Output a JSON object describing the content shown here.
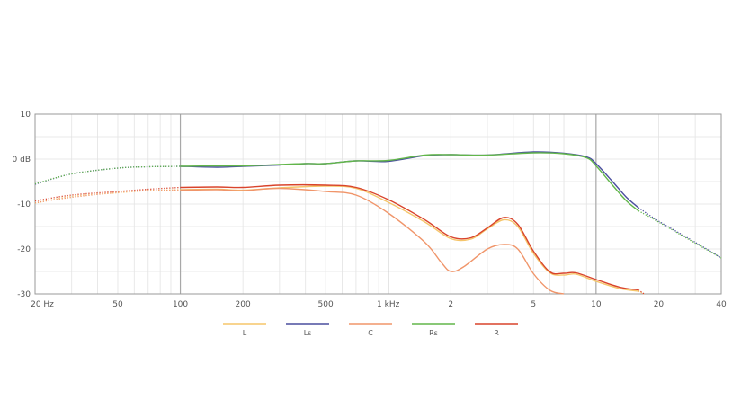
{
  "chart_data": {
    "type": "line",
    "title": "",
    "xlabel": "",
    "ylabel": "",
    "x_scale": "log",
    "xlim": [
      20,
      40000
    ],
    "ylim": [
      -30,
      10
    ],
    "grid": true,
    "legend_position": "bottom-center",
    "x_ticks": [
      {
        "value": 20,
        "label": "20 Hz"
      },
      {
        "value": 50,
        "label": "50"
      },
      {
        "value": 100,
        "label": "100"
      },
      {
        "value": 200,
        "label": "200"
      },
      {
        "value": 500,
        "label": "500"
      },
      {
        "value": 1000,
        "label": "1 kHz"
      },
      {
        "value": 2000,
        "label": "2"
      },
      {
        "value": 5000,
        "label": "5"
      },
      {
        "value": 10000,
        "label": "10"
      },
      {
        "value": 20000,
        "label": "20"
      },
      {
        "value": 40000,
        "label": "40"
      }
    ],
    "y_ticks": [
      {
        "value": 10,
        "label": "10"
      },
      {
        "value": 0,
        "label": "0 dB"
      },
      {
        "value": -10,
        "label": "-10"
      },
      {
        "value": -20,
        "label": "-20"
      },
      {
        "value": -30,
        "label": "-30"
      }
    ],
    "series": [
      {
        "name": "L",
        "color": "#f5c56a",
        "solid_from": 100,
        "solid_to": 16000,
        "points": [
          [
            20,
            -9.8
          ],
          [
            30,
            -8.3
          ],
          [
            50,
            -7.5
          ],
          [
            70,
            -7.0
          ],
          [
            100,
            -6.8
          ],
          [
            150,
            -6.7
          ],
          [
            200,
            -6.9
          ],
          [
            300,
            -6.4
          ],
          [
            500,
            -6.0
          ],
          [
            700,
            -6.5
          ],
          [
            1000,
            -9.6
          ],
          [
            1500,
            -14.0
          ],
          [
            2000,
            -17.7
          ],
          [
            2500,
            -17.8
          ],
          [
            3000,
            -15.5
          ],
          [
            3600,
            -13.5
          ],
          [
            4200,
            -15.0
          ],
          [
            5000,
            -21.0
          ],
          [
            6000,
            -25.3
          ],
          [
            7000,
            -25.8
          ],
          [
            8000,
            -25.6
          ],
          [
            10000,
            -27.2
          ],
          [
            13000,
            -28.8
          ],
          [
            16000,
            -29.4
          ],
          [
            17000,
            -30
          ]
        ]
      },
      {
        "name": "Ls",
        "color": "#4a4e9e",
        "solid_from": 100,
        "solid_to": 16000,
        "points": [
          [
            20,
            -5.6
          ],
          [
            30,
            -3.3
          ],
          [
            50,
            -2.0
          ],
          [
            70,
            -1.7
          ],
          [
            100,
            -1.6
          ],
          [
            150,
            -1.8
          ],
          [
            200,
            -1.6
          ],
          [
            300,
            -1.3
          ],
          [
            400,
            -1.0
          ],
          [
            500,
            -1.0
          ],
          [
            700,
            -0.4
          ],
          [
            1000,
            -0.5
          ],
          [
            1500,
            0.8
          ],
          [
            2000,
            1.0
          ],
          [
            3000,
            0.9
          ],
          [
            5000,
            1.6
          ],
          [
            7000,
            1.3
          ],
          [
            9000,
            0.5
          ],
          [
            10000,
            -1.0
          ],
          [
            12000,
            -5.0
          ],
          [
            14000,
            -8.5
          ],
          [
            16000,
            -10.8
          ],
          [
            20000,
            -13.8
          ],
          [
            30000,
            -18.5
          ],
          [
            40000,
            -22.0
          ]
        ]
      },
      {
        "name": "C",
        "color": "#f0956a",
        "solid_from": 100,
        "solid_to": 10000,
        "points": [
          [
            20,
            -9.7
          ],
          [
            30,
            -8.5
          ],
          [
            50,
            -7.4
          ],
          [
            70,
            -7.0
          ],
          [
            100,
            -6.9
          ],
          [
            150,
            -6.8
          ],
          [
            200,
            -7.0
          ],
          [
            300,
            -6.5
          ],
          [
            500,
            -7.2
          ],
          [
            700,
            -8.0
          ],
          [
            1000,
            -12.0
          ],
          [
            1500,
            -18.5
          ],
          [
            1800,
            -23.0
          ],
          [
            2000,
            -25.0
          ],
          [
            2300,
            -24.0
          ],
          [
            3000,
            -20.0
          ],
          [
            3600,
            -19.0
          ],
          [
            4200,
            -20.0
          ],
          [
            5000,
            -25.5
          ],
          [
            6000,
            -29.2
          ],
          [
            7000,
            -30.0
          ]
        ]
      },
      {
        "name": "Rs",
        "color": "#62b64a",
        "solid_from": 100,
        "solid_to": 16000,
        "points": [
          [
            20,
            -5.5
          ],
          [
            30,
            -3.3
          ],
          [
            50,
            -2.0
          ],
          [
            70,
            -1.7
          ],
          [
            100,
            -1.6
          ],
          [
            150,
            -1.5
          ],
          [
            200,
            -1.5
          ],
          [
            300,
            -1.2
          ],
          [
            400,
            -1.0
          ],
          [
            500,
            -1.0
          ],
          [
            700,
            -0.4
          ],
          [
            1000,
            -0.3
          ],
          [
            1500,
            0.9
          ],
          [
            2000,
            1.0
          ],
          [
            3000,
            0.9
          ],
          [
            5000,
            1.4
          ],
          [
            7000,
            1.2
          ],
          [
            9000,
            0.3
          ],
          [
            10000,
            -1.5
          ],
          [
            12000,
            -5.8
          ],
          [
            14000,
            -9.3
          ],
          [
            16000,
            -11.5
          ],
          [
            20000,
            -14.0
          ],
          [
            30000,
            -18.7
          ],
          [
            40000,
            -22.0
          ]
        ]
      },
      {
        "name": "R",
        "color": "#d9442c",
        "solid_from": 100,
        "solid_to": 16000,
        "points": [
          [
            20,
            -9.3
          ],
          [
            30,
            -8.0
          ],
          [
            50,
            -7.2
          ],
          [
            70,
            -6.7
          ],
          [
            100,
            -6.3
          ],
          [
            150,
            -6.2
          ],
          [
            200,
            -6.3
          ],
          [
            300,
            -5.8
          ],
          [
            500,
            -5.8
          ],
          [
            700,
            -6.3
          ],
          [
            1000,
            -9.0
          ],
          [
            1500,
            -13.5
          ],
          [
            2000,
            -17.3
          ],
          [
            2500,
            -17.5
          ],
          [
            3000,
            -15.3
          ],
          [
            3600,
            -13.0
          ],
          [
            4200,
            -14.5
          ],
          [
            5000,
            -20.5
          ],
          [
            6000,
            -25.1
          ],
          [
            7000,
            -25.4
          ],
          [
            8000,
            -25.3
          ],
          [
            10000,
            -26.8
          ],
          [
            13000,
            -28.5
          ],
          [
            16000,
            -29.1
          ],
          [
            17000,
            -30
          ]
        ]
      }
    ]
  }
}
